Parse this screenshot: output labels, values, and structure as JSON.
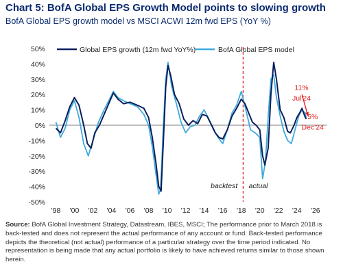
{
  "header": {
    "title": "Chart 5: BofA Global EPS Growth Model points to slowing growth",
    "subtitle": "BofA Global EPS growth model vs MSCI ACWI 12m fwd EPS (YoY %)"
  },
  "chart_data": {
    "type": "line",
    "xlim": [
      1997.3,
      2027.2
    ],
    "ylim": [
      -50,
      50
    ],
    "y_ticks": [
      50,
      40,
      30,
      20,
      10,
      0,
      -10,
      -20,
      -30,
      -40,
      -50
    ],
    "y_tick_labels": [
      "50%",
      "40%",
      "30%",
      "20%",
      "10%",
      "0%",
      "-10%",
      "-20%",
      "-30%",
      "-40%",
      "-50%"
    ],
    "x_ticks": [
      1998,
      2000,
      2002,
      2004,
      2006,
      2008,
      2010,
      2012,
      2014,
      2016,
      2018,
      2020,
      2022,
      2024,
      2026
    ],
    "x_tick_labels": [
      "'98",
      "'00",
      "'02",
      "'04",
      "'06",
      "'08",
      "'10",
      "'12",
      "'14",
      "'16",
      "'18",
      "'20",
      "'22",
      "'24",
      "'26"
    ],
    "legend_position": "top",
    "series": [
      {
        "name": "Global EPS growth (12m fwd YoY%)",
        "color": "#0b1f5c",
        "points": [
          [
            1998.0,
            -2
          ],
          [
            1998.5,
            -5
          ],
          [
            1999.0,
            3
          ],
          [
            1999.5,
            12
          ],
          [
            2000.0,
            18
          ],
          [
            2000.5,
            13
          ],
          [
            2001.0,
            0
          ],
          [
            2001.4,
            -12
          ],
          [
            2001.8,
            -15
          ],
          [
            2002.2,
            -5
          ],
          [
            2002.7,
            0
          ],
          [
            2003.2,
            7
          ],
          [
            2003.7,
            14
          ],
          [
            2004.2,
            21
          ],
          [
            2004.7,
            17
          ],
          [
            2005.3,
            14
          ],
          [
            2006.0,
            15
          ],
          [
            2006.8,
            13
          ],
          [
            2007.5,
            11
          ],
          [
            2008.0,
            5
          ],
          [
            2008.4,
            -8
          ],
          [
            2008.8,
            -25
          ],
          [
            2009.1,
            -40
          ],
          [
            2009.35,
            -43
          ],
          [
            2009.6,
            -10
          ],
          [
            2009.85,
            25
          ],
          [
            2010.1,
            39
          ],
          [
            2010.4,
            32
          ],
          [
            2010.8,
            20
          ],
          [
            2011.3,
            14
          ],
          [
            2011.8,
            4
          ],
          [
            2012.3,
            0
          ],
          [
            2012.8,
            3
          ],
          [
            2013.3,
            1
          ],
          [
            2013.8,
            7
          ],
          [
            2014.3,
            6
          ],
          [
            2014.8,
            0
          ],
          [
            2015.2,
            -5
          ],
          [
            2015.6,
            -8
          ],
          [
            2016.0,
            -9
          ],
          [
            2016.5,
            -3
          ],
          [
            2017.0,
            6
          ],
          [
            2017.5,
            11
          ],
          [
            2018.0,
            17
          ],
          [
            2018.4,
            14
          ],
          [
            2018.8,
            8
          ],
          [
            2019.2,
            2
          ],
          [
            2019.6,
            0
          ],
          [
            2020.0,
            -3
          ],
          [
            2020.3,
            -20
          ],
          [
            2020.55,
            -26
          ],
          [
            2020.9,
            -15
          ],
          [
            2021.2,
            20
          ],
          [
            2021.5,
            41
          ],
          [
            2021.8,
            30
          ],
          [
            2022.2,
            10
          ],
          [
            2022.6,
            5
          ],
          [
            2023.0,
            -4
          ],
          [
            2023.3,
            -5
          ],
          [
            2023.7,
            0
          ],
          [
            2024.0,
            5
          ],
          [
            2024.3,
            8
          ],
          [
            2024.55,
            11
          ],
          [
            2024.85,
            6
          ],
          [
            2025.0,
            4
          ]
        ]
      },
      {
        "name": "BofA Global EPS model",
        "color": "#3fa9dc",
        "points": [
          [
            1998.0,
            2
          ],
          [
            1998.5,
            -8
          ],
          [
            1999.0,
            -2
          ],
          [
            1999.5,
            10
          ],
          [
            2000.0,
            16
          ],
          [
            2000.5,
            5
          ],
          [
            2001.0,
            -12
          ],
          [
            2001.5,
            -20
          ],
          [
            2002.0,
            -10
          ],
          [
            2002.6,
            2
          ],
          [
            2003.2,
            10
          ],
          [
            2003.7,
            16
          ],
          [
            2004.2,
            22
          ],
          [
            2004.7,
            18
          ],
          [
            2005.3,
            16
          ],
          [
            2006.0,
            14
          ],
          [
            2006.8,
            12
          ],
          [
            2007.5,
            7
          ],
          [
            2008.0,
            0
          ],
          [
            2008.4,
            -14
          ],
          [
            2008.8,
            -32
          ],
          [
            2009.1,
            -45
          ],
          [
            2009.3,
            -42
          ],
          [
            2009.6,
            0
          ],
          [
            2009.85,
            30
          ],
          [
            2010.1,
            41
          ],
          [
            2010.5,
            25
          ],
          [
            2011.0,
            14
          ],
          [
            2011.5,
            2
          ],
          [
            2012.0,
            -5
          ],
          [
            2012.5,
            -1
          ],
          [
            2013.0,
            0
          ],
          [
            2013.5,
            6
          ],
          [
            2014.0,
            10
          ],
          [
            2014.5,
            4
          ],
          [
            2015.0,
            -3
          ],
          [
            2015.5,
            -8
          ],
          [
            2016.0,
            -12
          ],
          [
            2016.5,
            -3
          ],
          [
            2017.0,
            8
          ],
          [
            2017.5,
            13
          ],
          [
            2018.0,
            22
          ],
          [
            2018.5,
            10
          ],
          [
            2019.0,
            -3
          ],
          [
            2019.5,
            -5
          ],
          [
            2020.0,
            -8
          ],
          [
            2020.3,
            -35
          ],
          [
            2020.6,
            -24
          ],
          [
            2020.9,
            5
          ],
          [
            2021.2,
            30
          ],
          [
            2021.5,
            33
          ],
          [
            2021.8,
            18
          ],
          [
            2022.2,
            6
          ],
          [
            2022.6,
            -4
          ],
          [
            2023.0,
            -10
          ],
          [
            2023.4,
            -12
          ],
          [
            2023.8,
            -3
          ],
          [
            2024.2,
            6
          ],
          [
            2024.55,
            10
          ],
          [
            2024.9,
            8
          ],
          [
            2025.0,
            5
          ]
        ]
      }
    ],
    "divider": {
      "x": 2018.2,
      "color": "#e02020"
    },
    "annotations": [
      {
        "text": "backtest",
        "x": 2017.6,
        "y": -41,
        "anchor": "end",
        "italic": true,
        "color": "#222222"
      },
      {
        "text": "actual",
        "x": 2018.8,
        "y": -41,
        "anchor": "start",
        "italic": true,
        "color": "#222222"
      },
      {
        "text": "11%",
        "x": 2024.5,
        "y": 23,
        "anchor": "middle",
        "color": "#e02020"
      },
      {
        "text": "Jul'24",
        "x": 2024.5,
        "y": 16,
        "anchor": "middle",
        "color": "#e02020"
      },
      {
        "text": "5%",
        "x": 2025.7,
        "y": 4,
        "anchor": "middle",
        "color": "#e02020"
      },
      {
        "text": "Dec'24",
        "x": 2025.7,
        "y": -3,
        "anchor": "middle",
        "color": "#e02020"
      }
    ],
    "arrow": {
      "from": [
        2024.55,
        20
      ],
      "to": [
        2025.2,
        6
      ],
      "color": "#e02020"
    }
  },
  "footer": {
    "source_label": "Source:",
    "source_text": "BofA Global Investment Strategy, Datastream, IBES, MSCI; The performance prior to March 2018 is back-tested and does not represent the actual performance of any account or fund. Back-tested performance depicts the theoretical (not actual) performance of a particular strategy over the time period indicated. No representation is being made that any actual portfolio is likely to have achieved returns similar to those shown herein."
  }
}
